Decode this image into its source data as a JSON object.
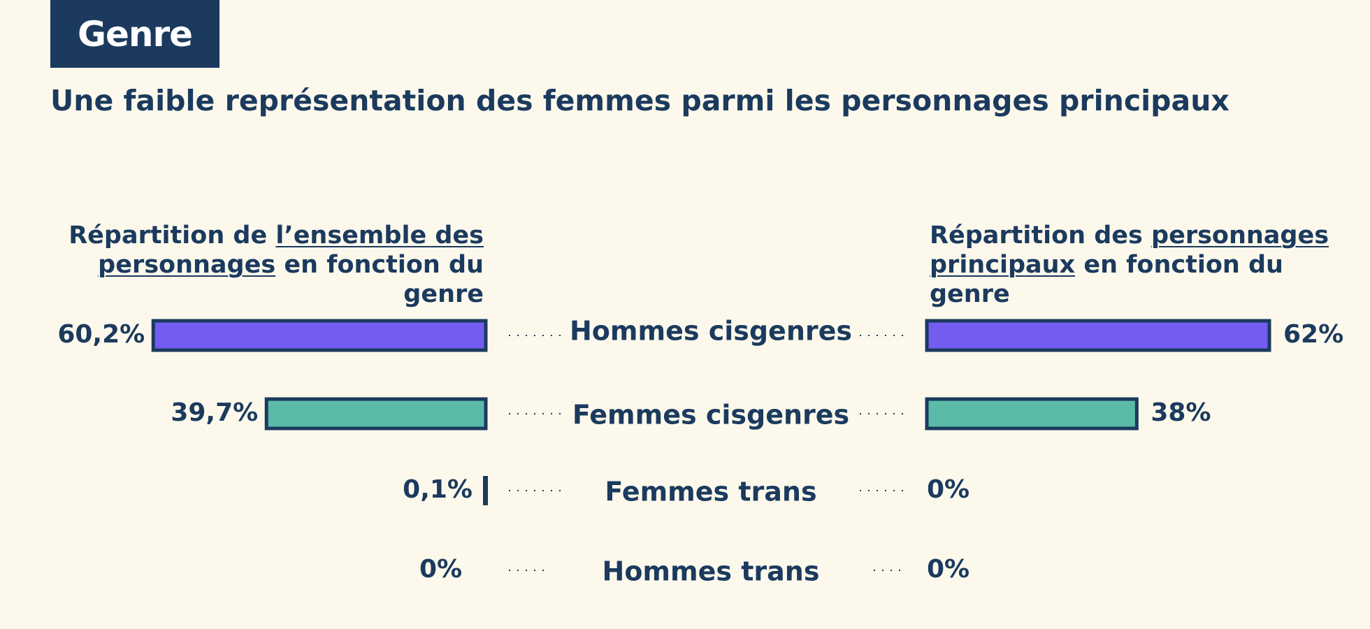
{
  "header": {
    "tag": "Genre",
    "subtitle": "Une faible représentation des femmes parmi les personnages principaux"
  },
  "colors": {
    "navy": "#1b3a5e",
    "purple": "#735cf0",
    "teal": "#5bbba8",
    "background": "#fcf9ec"
  },
  "chart_data": [
    {
      "type": "bar",
      "orientation": "horizontal",
      "title": "Répartition de l’ensemble des personnages en fonction du genre",
      "title_parts": [
        "Répartition de ",
        "l’ensemble des personnages",
        " en fonction du genre"
      ],
      "categories": [
        "Hommes  cisgenres",
        "Femmes  cisgenres",
        "Femmes  trans",
        "Hommes trans"
      ],
      "values": [
        60.2,
        39.7,
        0.1,
        0
      ],
      "labels": [
        "60,2%",
        "39,7%",
        "0,1%",
        "0%"
      ],
      "unit": "%",
      "xlim": [
        0,
        62
      ]
    },
    {
      "type": "bar",
      "orientation": "horizontal",
      "title": "Répartition des personnages principaux en fonction du genre",
      "title_parts": [
        "Répartition des ",
        "personnages principaux",
        " en fonction du genre"
      ],
      "categories": [
        "Hommes  cisgenres",
        "Femmes  cisgenres",
        "Femmes  trans",
        "Hommes trans"
      ],
      "values": [
        62,
        38,
        0,
        0
      ],
      "labels": [
        "62%",
        "38%",
        "0%",
        "0%"
      ],
      "unit": "%",
      "xlim": [
        0,
        62
      ]
    }
  ]
}
